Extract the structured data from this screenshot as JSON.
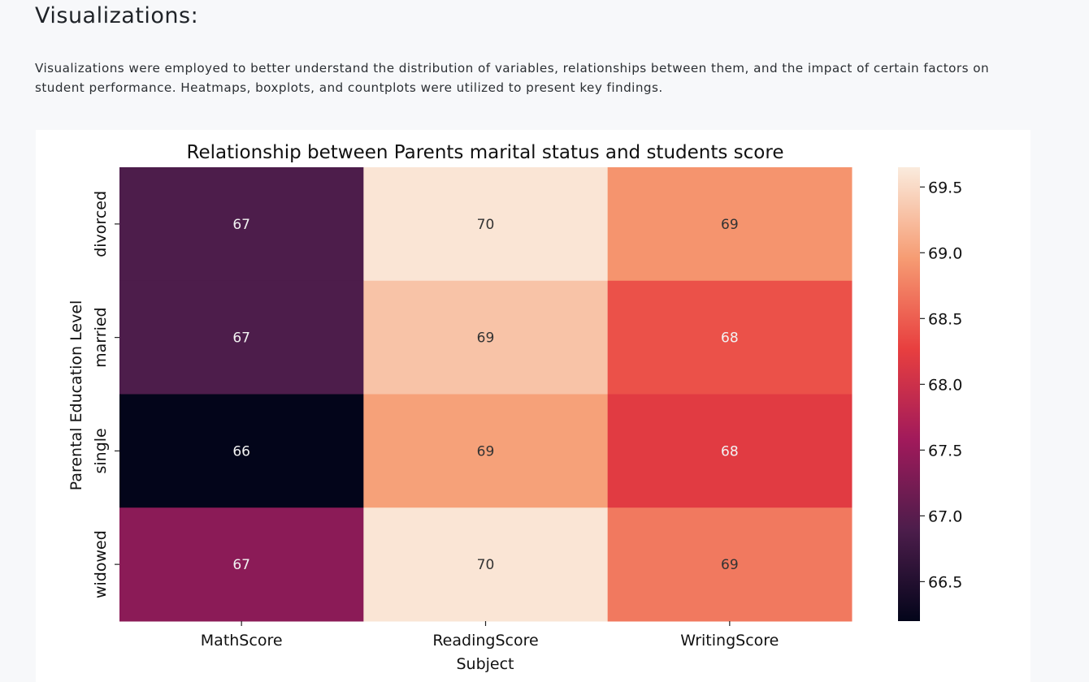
{
  "page": {
    "heading": "Visualizations:",
    "description": "Visualizations were employed to better understand the distribution of variables, relationships between them, and the impact of certain factors on student performance. Heatmaps, boxplots, and countplots were utilized to present key findings."
  },
  "chart_data": {
    "type": "heatmap",
    "title": "Relationship between Parents marital status and students score",
    "xlabel": "Subject",
    "ylabel": "Parental Education Level",
    "x_categories": [
      "MathScore",
      "ReadingScore",
      "WritingScore"
    ],
    "y_categories": [
      "divorced",
      "married",
      "single",
      "widowed"
    ],
    "annotations": [
      [
        "67",
        "70",
        "69"
      ],
      [
        "67",
        "69",
        "68"
      ],
      [
        "66",
        "69",
        "68"
      ],
      [
        "67",
        "70",
        "69"
      ]
    ],
    "values": [
      [
        66.9,
        69.6,
        68.9
      ],
      [
        66.9,
        69.3,
        68.4
      ],
      [
        66.2,
        69.0,
        68.2
      ],
      [
        67.4,
        69.6,
        68.7
      ]
    ],
    "colorbar": {
      "min": 66.2,
      "max": 69.65,
      "ticks": [
        66.5,
        67.0,
        67.5,
        68.0,
        68.5,
        69.0,
        69.5
      ],
      "tick_labels": [
        "66.5",
        "67.0",
        "67.5",
        "68.0",
        "68.5",
        "69.0",
        "69.5"
      ]
    },
    "colormap": [
      "#03051a",
      "#4c1d4b",
      "#a11a5b",
      "#e83f3f",
      "#f69c73",
      "#faebdd"
    ]
  }
}
